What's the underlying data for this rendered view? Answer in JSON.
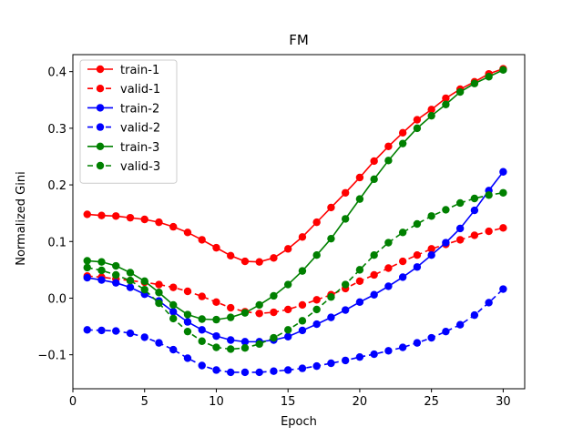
{
  "chart_data": {
    "type": "line",
    "title": "FM",
    "xlabel": "Epoch",
    "ylabel": "Normalized Gini",
    "xlim": [
      0,
      31.5
    ],
    "ylim": [
      -0.16,
      0.43
    ],
    "xticks": [
      0,
      5,
      10,
      15,
      20,
      25,
      30
    ],
    "yticks": [
      -0.1,
      0.0,
      0.1,
      0.2,
      0.3,
      0.4
    ],
    "ytick_labels": [
      "−0.1",
      "0.0",
      "0.1",
      "0.2",
      "0.3",
      "0.4"
    ],
    "grid": false,
    "legend": "top-left",
    "x": [
      1,
      2,
      3,
      4,
      5,
      6,
      7,
      8,
      9,
      10,
      11,
      12,
      13,
      14,
      15,
      16,
      17,
      18,
      19,
      20,
      21,
      22,
      23,
      24,
      25,
      26,
      27,
      28,
      29,
      30
    ],
    "series": [
      {
        "name": "train-1",
        "color": "#ff0000",
        "dash": false,
        "values": [
          0.148,
          0.146,
          0.145,
          0.142,
          0.139,
          0.134,
          0.126,
          0.116,
          0.103,
          0.089,
          0.075,
          0.065,
          0.064,
          0.071,
          0.087,
          0.108,
          0.134,
          0.16,
          0.186,
          0.213,
          0.242,
          0.268,
          0.292,
          0.315,
          0.333,
          0.353,
          0.369,
          0.382,
          0.396,
          0.405
        ]
      },
      {
        "name": "valid-1",
        "color": "#ff0000",
        "dash": true,
        "values": [
          0.039,
          0.037,
          0.034,
          0.031,
          0.028,
          0.024,
          0.019,
          0.012,
          0.003,
          -0.007,
          -0.017,
          -0.024,
          -0.027,
          -0.025,
          -0.02,
          -0.012,
          -0.003,
          0.006,
          0.017,
          0.03,
          0.041,
          0.053,
          0.065,
          0.076,
          0.087,
          0.095,
          0.103,
          0.111,
          0.118,
          0.124
        ]
      },
      {
        "name": "train-2",
        "color": "#0000ff",
        "dash": false,
        "values": [
          0.036,
          0.032,
          0.027,
          0.019,
          0.007,
          -0.005,
          -0.024,
          -0.042,
          -0.056,
          -0.067,
          -0.074,
          -0.077,
          -0.077,
          -0.074,
          -0.068,
          -0.057,
          -0.046,
          -0.034,
          -0.021,
          -0.007,
          0.006,
          0.021,
          0.037,
          0.055,
          0.076,
          0.098,
          0.123,
          0.155,
          0.19,
          0.223
        ]
      },
      {
        "name": "valid-2",
        "color": "#0000ff",
        "dash": true,
        "values": [
          -0.056,
          -0.057,
          -0.058,
          -0.062,
          -0.069,
          -0.079,
          -0.091,
          -0.106,
          -0.119,
          -0.127,
          -0.131,
          -0.131,
          -0.131,
          -0.129,
          -0.127,
          -0.124,
          -0.12,
          -0.115,
          -0.11,
          -0.104,
          -0.099,
          -0.093,
          -0.087,
          -0.079,
          -0.07,
          -0.059,
          -0.047,
          -0.03,
          -0.008,
          0.016
        ]
      },
      {
        "name": "train-3",
        "color": "#008000",
        "dash": false,
        "values": [
          0.066,
          0.064,
          0.057,
          0.045,
          0.03,
          0.01,
          -0.012,
          -0.029,
          -0.037,
          -0.038,
          -0.034,
          -0.026,
          -0.012,
          0.004,
          0.024,
          0.048,
          0.076,
          0.105,
          0.14,
          0.175,
          0.21,
          0.243,
          0.273,
          0.3,
          0.322,
          0.342,
          0.364,
          0.379,
          0.391,
          0.403
        ]
      },
      {
        "name": "valid-3",
        "color": "#008000",
        "dash": true,
        "values": [
          0.054,
          0.049,
          0.041,
          0.031,
          0.015,
          -0.009,
          -0.036,
          -0.059,
          -0.076,
          -0.087,
          -0.09,
          -0.088,
          -0.081,
          -0.07,
          -0.056,
          -0.04,
          -0.02,
          0.002,
          0.024,
          0.05,
          0.076,
          0.098,
          0.116,
          0.131,
          0.145,
          0.156,
          0.168,
          0.176,
          0.182,
          0.186
        ]
      }
    ]
  }
}
